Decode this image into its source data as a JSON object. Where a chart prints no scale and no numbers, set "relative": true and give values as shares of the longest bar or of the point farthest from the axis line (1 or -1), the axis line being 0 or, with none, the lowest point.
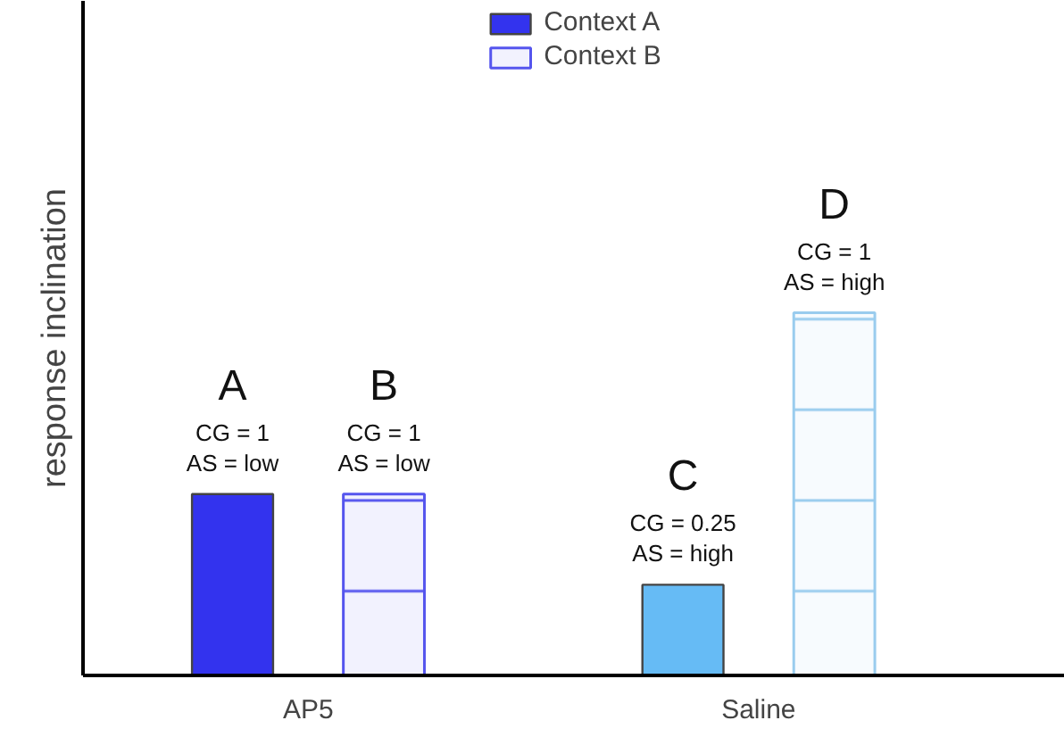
{
  "chart_data": {
    "type": "bar",
    "relative": true,
    "ylabel": "response inclination",
    "categories": [
      "AP5",
      "Saline"
    ],
    "legend": "top",
    "series": [
      {
        "name": "Context A",
        "colors": [
          "#3333ee",
          "#66bbf5"
        ],
        "values": [
          0.5,
          0.25
        ]
      },
      {
        "name": "Context B",
        "colors": [
          "#5555ee",
          "#99ccee"
        ],
        "values": [
          0.5,
          1
        ]
      }
    ],
    "annotations": [
      "A",
      "CG = 1",
      "AS = low",
      "B",
      "CG = 1",
      "AS = low",
      "C",
      "CG = 0.25",
      "AS = high",
      "D",
      "CG = 1",
      "AS = high"
    ]
  }
}
